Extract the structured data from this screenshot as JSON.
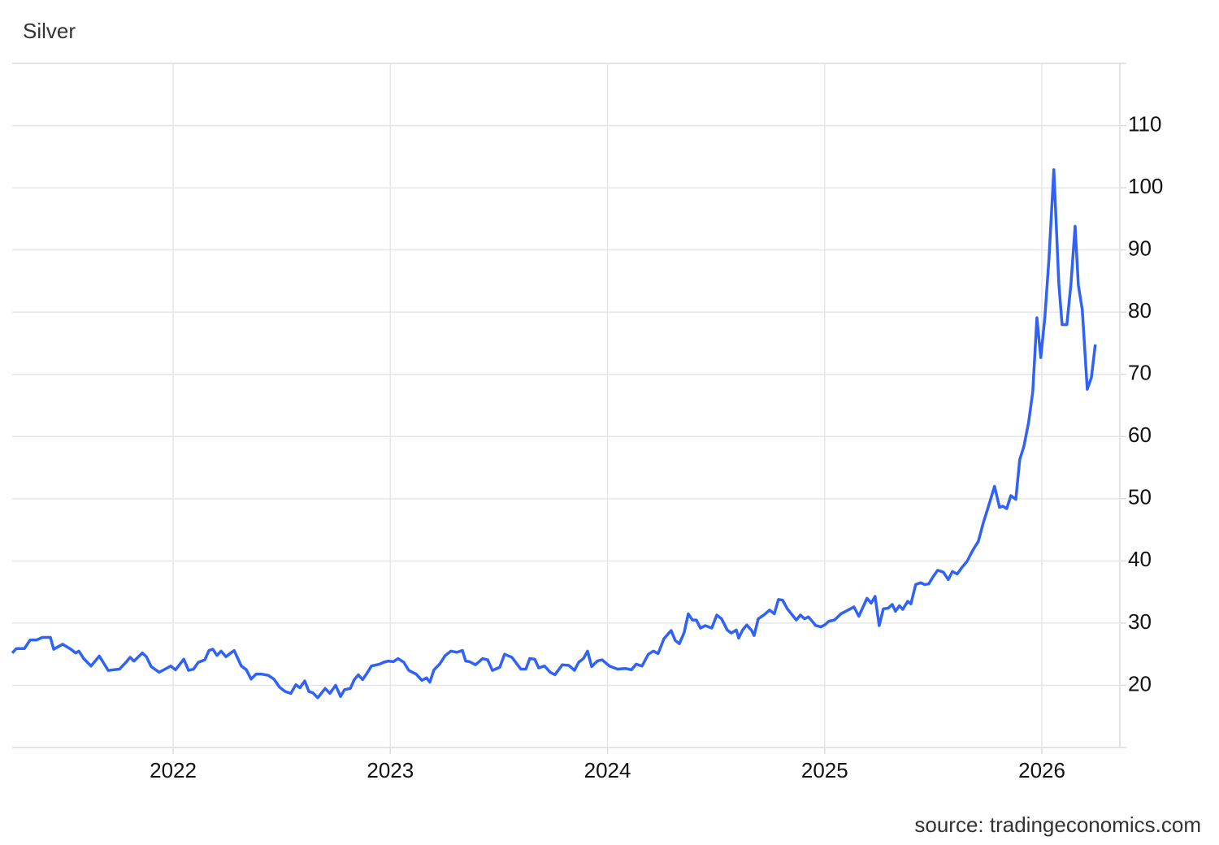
{
  "chart_data": {
    "type": "line",
    "title": "Silver",
    "source": "source: tradingeconomics.com",
    "x": [
      2021.259,
      2021.278,
      2021.315,
      2021.342,
      2021.372,
      2021.398,
      2021.435,
      2021.45,
      2021.491,
      2021.529,
      2021.551,
      2021.566,
      2021.588,
      2021.622,
      2021.66,
      2021.701,
      2021.753,
      2021.783,
      2021.802,
      2021.82,
      2021.858,
      2021.877,
      2021.899,
      2021.936,
      2021.989,
      2022.011,
      2022.049,
      2022.071,
      2022.094,
      2022.116,
      2022.146,
      2022.165,
      2022.183,
      2022.202,
      2022.221,
      2022.243,
      2022.258,
      2022.281,
      2022.314,
      2022.337,
      2022.359,
      2022.382,
      2022.408,
      2022.438,
      2022.464,
      2022.49,
      2022.516,
      2022.542,
      2022.565,
      2022.584,
      2022.606,
      2022.625,
      2022.643,
      2022.666,
      2022.7,
      2022.722,
      2022.748,
      2022.771,
      2022.789,
      2022.816,
      2022.834,
      2022.853,
      2022.872,
      2022.89,
      2022.913,
      2022.95,
      2022.969,
      2022.991,
      2023.014,
      2023.036,
      2023.062,
      2023.085,
      2023.119,
      2023.145,
      2023.167,
      2023.182,
      2023.201,
      2023.227,
      2023.253,
      2023.279,
      2023.306,
      2023.332,
      2023.347,
      2023.365,
      2023.392,
      2023.425,
      2023.448,
      2023.47,
      2023.504,
      2023.526,
      2023.56,
      2023.601,
      2023.624,
      2023.642,
      2023.665,
      2023.683,
      2023.71,
      2023.736,
      2023.758,
      2023.792,
      2023.822,
      2023.848,
      2023.867,
      2023.889,
      2023.908,
      2023.927,
      2023.953,
      2023.975,
      2024.009,
      2024.046,
      2024.084,
      2024.11,
      2024.132,
      2024.159,
      2024.188,
      2024.211,
      2024.233,
      2024.26,
      2024.293,
      2024.312,
      2024.331,
      2024.353,
      2024.372,
      2024.391,
      2024.409,
      2024.428,
      2024.45,
      2024.48,
      2024.503,
      2024.525,
      2024.551,
      2024.57,
      2024.593,
      2024.604,
      2024.622,
      2024.641,
      2024.664,
      2024.675,
      2024.694,
      2024.72,
      2024.746,
      2024.768,
      2024.787,
      2024.806,
      2024.828,
      2024.869,
      2024.888,
      2024.907,
      2024.925,
      2024.94,
      2024.959,
      2024.982,
      2025.0,
      2025.019,
      2025.045,
      2025.075,
      2025.113,
      2025.135,
      2025.157,
      2025.195,
      2025.214,
      2025.232,
      2025.251,
      2025.27,
      2025.292,
      2025.311,
      2025.326,
      2025.344,
      2025.359,
      2025.382,
      2025.397,
      2025.419,
      2025.442,
      2025.46,
      2025.479,
      2025.498,
      2025.52,
      2025.546,
      2025.569,
      2025.588,
      2025.61,
      2025.633,
      2025.655,
      2025.677,
      2025.692,
      2025.707,
      2025.73,
      2025.756,
      2025.782,
      2025.805,
      2025.82,
      2025.838,
      2025.857,
      2025.88,
      2025.898,
      2025.917,
      2025.939,
      2025.958,
      2025.977,
      2025.995,
      2026.014,
      2026.033,
      2026.055,
      2026.078,
      2026.093,
      2026.115,
      2026.134,
      2026.153,
      2026.168,
      2026.186,
      2026.209,
      2026.228,
      2026.246
    ],
    "series": [
      {
        "name": "Silver",
        "color": "#2f62f5",
        "values": [
          25.2,
          25.9,
          25.9,
          27.3,
          27.3,
          27.7,
          27.7,
          25.8,
          26.6,
          25.8,
          25.2,
          25.5,
          24.3,
          23.1,
          24.7,
          22.4,
          22.6,
          23.7,
          24.5,
          23.9,
          25.2,
          24.6,
          23.0,
          22.1,
          23.1,
          22.5,
          24.2,
          22.4,
          22.6,
          23.7,
          24.1,
          25.6,
          25.8,
          24.8,
          25.5,
          24.6,
          25.0,
          25.6,
          23.1,
          22.5,
          21.0,
          21.8,
          21.8,
          21.6,
          21.0,
          19.7,
          19.0,
          18.7,
          20.1,
          19.6,
          20.7,
          19.0,
          18.8,
          18.0,
          19.5,
          18.7,
          20.0,
          18.2,
          19.3,
          19.5,
          20.9,
          21.7,
          20.9,
          21.8,
          23.1,
          23.4,
          23.7,
          23.9,
          23.8,
          24.3,
          23.7,
          22.4,
          21.8,
          20.8,
          21.2,
          20.5,
          22.5,
          23.4,
          24.8,
          25.5,
          25.3,
          25.6,
          23.9,
          23.8,
          23.3,
          24.3,
          24.1,
          22.4,
          22.9,
          25.0,
          24.5,
          22.6,
          22.6,
          24.3,
          24.2,
          22.8,
          23.1,
          22.1,
          21.7,
          23.3,
          23.2,
          22.4,
          23.7,
          24.3,
          25.5,
          23.0,
          23.9,
          24.1,
          23.1,
          22.6,
          22.7,
          22.5,
          23.4,
          23.1,
          25.0,
          25.5,
          25.1,
          27.5,
          28.8,
          27.2,
          26.7,
          28.5,
          31.5,
          30.5,
          30.5,
          29.2,
          29.6,
          29.2,
          31.3,
          30.7,
          28.9,
          28.4,
          28.9,
          27.6,
          28.9,
          29.7,
          28.8,
          28.0,
          30.7,
          31.3,
          32.1,
          31.5,
          33.8,
          33.7,
          32.3,
          30.5,
          31.3,
          30.7,
          31.0,
          30.4,
          29.6,
          29.4,
          29.7,
          30.3,
          30.5,
          31.5,
          32.2,
          32.6,
          31.1,
          34.0,
          33.2,
          34.3,
          29.6,
          32.3,
          32.4,
          33.0,
          31.9,
          32.8,
          32.2,
          33.5,
          33.1,
          36.2,
          36.5,
          36.2,
          36.3,
          37.4,
          38.5,
          38.2,
          37.0,
          38.3,
          37.9,
          39.0,
          39.9,
          41.4,
          42.3,
          43.1,
          46.1,
          49.0,
          52.0,
          48.6,
          48.8,
          48.4,
          50.5,
          49.9,
          56.3,
          58.4,
          62.3,
          67.2,
          79.1,
          72.7,
          79.3,
          88.8,
          102.9,
          84.6,
          78.0,
          78.0,
          84.6,
          93.8,
          84.3,
          80.4,
          67.6,
          69.5,
          74.8
        ]
      }
    ],
    "xlim": [
      2021.259,
      2026.359
    ],
    "xticks": [
      2022,
      2023,
      2024,
      2025,
      2026
    ],
    "ylim": [
      10,
      120
    ],
    "yticks": [
      20,
      30,
      40,
      50,
      60,
      70,
      80,
      90,
      100,
      110
    ],
    "grid": true,
    "y_axis_side": "right"
  }
}
